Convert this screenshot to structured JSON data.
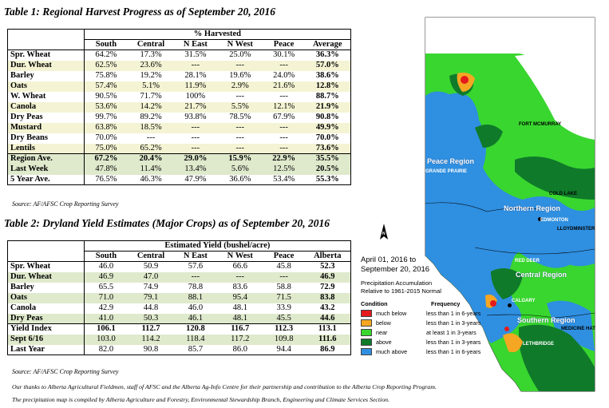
{
  "table1": {
    "title": "Table 1: Regional Harvest Progress as of September 20, 2016",
    "group_header": "% Harvested",
    "columns": [
      "South",
      "Central",
      "N East",
      "N West",
      "Peace",
      "Average"
    ],
    "rows": [
      {
        "crop": "Spr. Wheat",
        "values": [
          "64.2%",
          "17.3%",
          "31.5%",
          "25.0%",
          "30.1%",
          "36.3%"
        ]
      },
      {
        "crop": "Dur. Wheat",
        "values": [
          "62.5%",
          "23.6%",
          "---",
          "---",
          "---",
          "57.0%"
        ]
      },
      {
        "crop": "Barley",
        "values": [
          "75.8%",
          "19.2%",
          "28.1%",
          "19.6%",
          "24.0%",
          "38.6%"
        ]
      },
      {
        "crop": "Oats",
        "values": [
          "57.4%",
          "5.1%",
          "11.9%",
          "2.9%",
          "21.6%",
          "12.8%"
        ]
      },
      {
        "crop": "W. Wheat",
        "values": [
          "90.5%",
          "71.7%",
          "100%",
          "---",
          "---",
          "88.7%"
        ]
      },
      {
        "crop": "Canola",
        "values": [
          "53.6%",
          "14.2%",
          "21.7%",
          "5.5%",
          "12.1%",
          "21.9%"
        ]
      },
      {
        "crop": "Dry Peas",
        "values": [
          "99.7%",
          "89.2%",
          "93.8%",
          "78.5%",
          "67.9%",
          "90.8%"
        ]
      },
      {
        "crop": "Mustard",
        "values": [
          "63.8%",
          "18.5%",
          "---",
          "---",
          "---",
          "49.9%"
        ]
      },
      {
        "crop": "Dry Beans",
        "values": [
          "70.0%",
          "---",
          "---",
          "---",
          "---",
          "70.0%"
        ]
      },
      {
        "crop": "Lentils",
        "values": [
          "75.0%",
          "65.2%",
          "---",
          "---",
          "---",
          "73.6%"
        ]
      }
    ],
    "summary": [
      {
        "crop": "Region Ave.",
        "values": [
          "67.2%",
          "20.4%",
          "29.0%",
          "15.9%",
          "22.9%",
          "35.5%"
        ]
      },
      {
        "crop": "Last Week",
        "values": [
          "47.8%",
          "11.4%",
          "13.4%",
          "5.6%",
          "12.5%",
          "20.5%"
        ]
      },
      {
        "crop": "5 Year Ave.",
        "values": [
          "76.5%",
          "46.3%",
          "47.9%",
          "36.6%",
          "53.4%",
          "55.3%"
        ]
      }
    ],
    "source": "Source: AF/AFSC Crop Reporting Survey"
  },
  "table2": {
    "title": "Table 2: Dryland Yield Estimates (Major Crops) as of September 20, 2016",
    "group_header": "Estimated Yield (bushel/acre)",
    "columns": [
      "South",
      "Central",
      "N East",
      "N West",
      "Peace",
      "Alberta"
    ],
    "rows": [
      {
        "crop": "Spr. Wheat",
        "values": [
          "46.0",
          "50.9",
          "57.6",
          "66.6",
          "45.8",
          "52.3"
        ]
      },
      {
        "crop": "Dur. Wheat",
        "values": [
          "46.9",
          "47.0",
          "---",
          "---",
          "---",
          "46.9"
        ]
      },
      {
        "crop": "Barley",
        "values": [
          "65.5",
          "74.9",
          "78.8",
          "83.6",
          "58.8",
          "72.9"
        ]
      },
      {
        "crop": "Oats",
        "values": [
          "71.0",
          "79.1",
          "88.1",
          "95.4",
          "71.5",
          "83.8"
        ]
      },
      {
        "crop": "Canola",
        "values": [
          "42.9",
          "44.8",
          "46.0",
          "48.1",
          "33.9",
          "43.2"
        ]
      },
      {
        "crop": "Dry Peas",
        "values": [
          "41.0",
          "50.3",
          "46.1",
          "48.1",
          "45.5",
          "44.6"
        ]
      }
    ],
    "summary": [
      {
        "crop": "Yield Index",
        "values": [
          "106.1",
          "112.7",
          "120.8",
          "116.7",
          "112.3",
          "113.1"
        ]
      },
      {
        "crop": "Sept 6/16",
        "values": [
          "103.0",
          "114.2",
          "118.4",
          "117.2",
          "109.8",
          "111.6"
        ]
      },
      {
        "crop": "Last Year",
        "values": [
          "82.0",
          "90.8",
          "85.7",
          "86.0",
          "94.4",
          "86.9"
        ]
      }
    ],
    "source": "Source: AF/AFSC Crop Reporting Survey"
  },
  "footnotes": {
    "line1": "Our thanks to Alberta Agricultural Fieldmen, staff of AFSC and the Alberta Ag-Info Centre for their partnership and contribution to the Alberta Crop Reporting Program.",
    "line2": "The precipitation map is compiled by Alberta Agriculture and Forestry, Environmental Stewardship Branch, Engineering and Climate Services Section."
  },
  "map": {
    "regions": {
      "peace": "Peace Region",
      "northern": "Northern Region",
      "central": "Central Region",
      "southern": "Southern Region"
    },
    "cities": {
      "fort_mcmurray": "FORT MCMURRAY",
      "grande_prairie": "GRANDE PRAIRIE",
      "cold_lake": "COLD LAKE",
      "edmonton": "EDMONTON",
      "lloydminster": "LLOYDMINSTER",
      "red_deer": "RED DEER",
      "calgary": "CALGARY",
      "medicine_hat": "MEDICINE HAT",
      "lethbridge": "LETHBRIDGE"
    },
    "compass": "N",
    "legend": {
      "date_line1": "April 01, 2016 to",
      "date_line2": "September 20, 2016",
      "subtitle_line1": "Precipitation Accumulation",
      "subtitle_line2": "Relative to 1961-2015 Normal",
      "condition_header": "Condition",
      "frequency_header": "Frequency",
      "items": [
        {
          "condition": "much below",
          "frequency": "less than 1 in 6-years",
          "color": "#e41a1c"
        },
        {
          "condition": "below",
          "frequency": "less than 1 in 3-years",
          "color": "#f5a623"
        },
        {
          "condition": "near",
          "frequency": "at least 1 in 3-years",
          "color": "#39d62f"
        },
        {
          "condition": "above",
          "frequency": "less than 1 in 3-years",
          "color": "#0f7a2a"
        },
        {
          "condition": "much above",
          "frequency": "less than 1 in 6-years",
          "color": "#2f8fe0"
        }
      ]
    }
  }
}
